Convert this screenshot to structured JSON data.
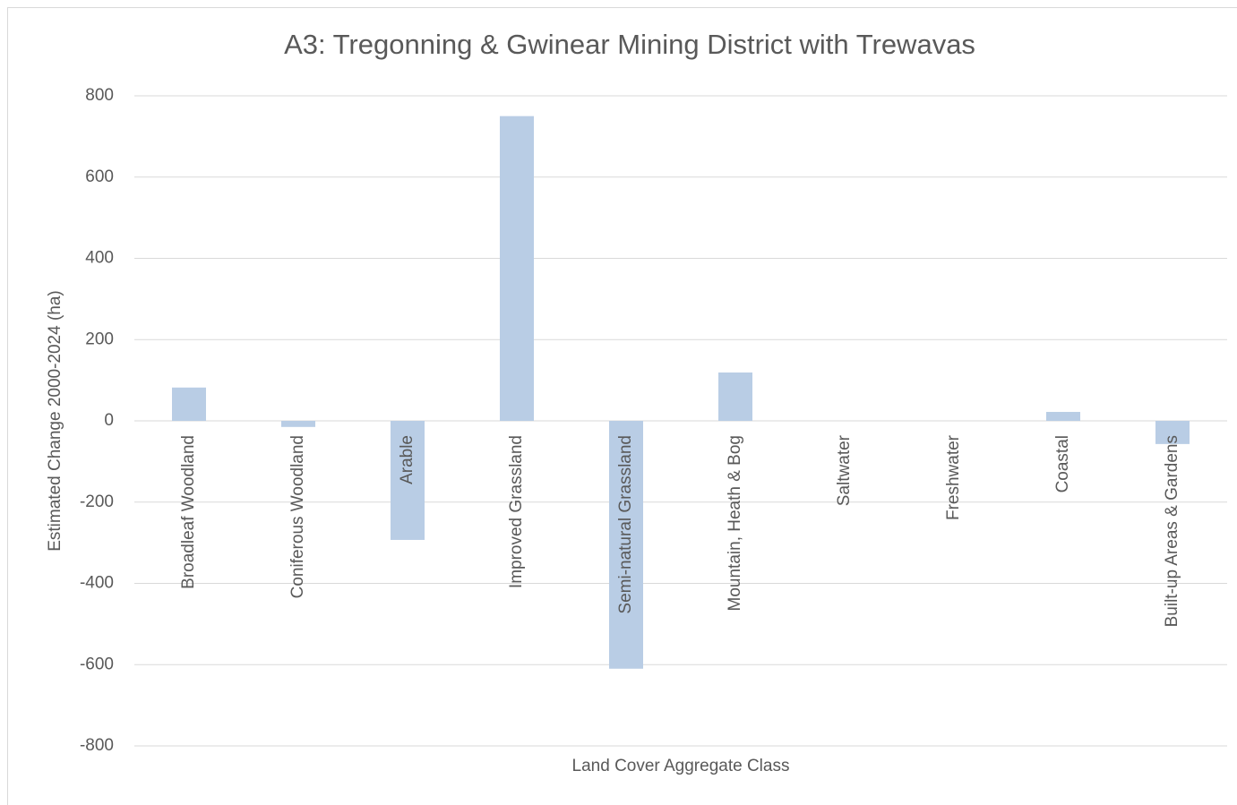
{
  "chart_data": {
    "type": "bar",
    "title": "A3: Tregonning & Gwinear Mining District with Trewavas",
    "x_label": "Land Cover Aggregate Class",
    "y_label": "Estimated Change 2000-2024 (ha)",
    "categories": [
      "Broadleaf Woodland",
      "Coniferous Woodland",
      "Arable",
      "Improved Grassland",
      "Semi-natural Grassland",
      "Mountain, Heath & Bog",
      "Saltwater",
      "Freshwater",
      "Coastal",
      "Built-up Areas & Gardens"
    ],
    "values": [
      82,
      -15,
      -293,
      750,
      -610,
      119,
      0,
      0,
      22,
      -57
    ],
    "color": "#b9cde5",
    "ylim": [
      -800,
      800
    ],
    "yticks": [
      -800,
      -600,
      -400,
      -200,
      0,
      200,
      400,
      600,
      800
    ],
    "grid": true
  }
}
